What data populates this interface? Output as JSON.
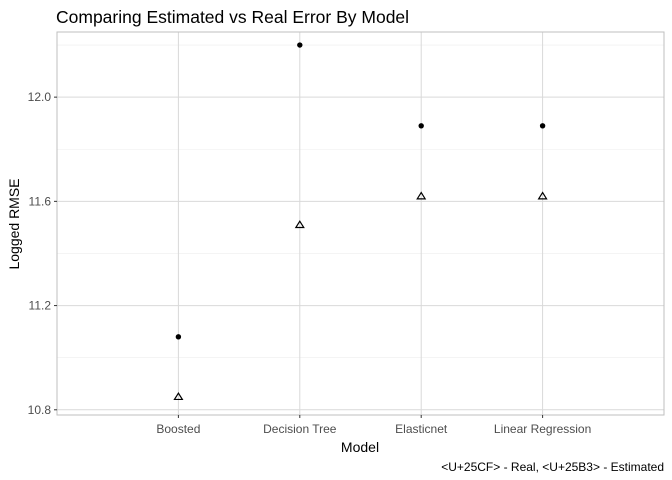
{
  "chart_data": {
    "type": "scatter",
    "title": "Comparing Estimated vs Real Error By Model",
    "xlabel": "Model",
    "ylabel": "Logged RMSE",
    "caption": "<U+25CF> - Real, <U+25B3> - Estimated",
    "categories": [
      "Boosted",
      "Decision Tree",
      "Elasticnet",
      "Linear Regression"
    ],
    "ylim": [
      10.78,
      12.25
    ],
    "yticks": [
      "10.8",
      "11.2",
      "11.6",
      "12.0"
    ],
    "grid": true,
    "series": [
      {
        "name": "Real",
        "marker": "filled-circle",
        "values": [
          11.08,
          12.2,
          11.89,
          11.89
        ]
      },
      {
        "name": "Estimated",
        "marker": "open-triangle",
        "values": [
          10.85,
          11.51,
          11.62,
          11.62
        ]
      }
    ]
  }
}
